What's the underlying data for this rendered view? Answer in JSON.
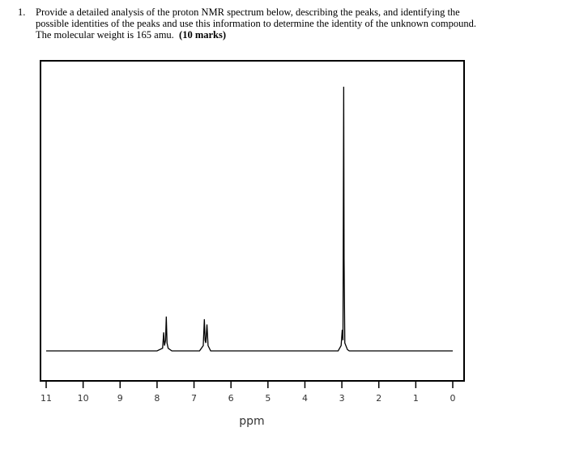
{
  "question": {
    "number": "1.",
    "lines": [
      "Provide a detailed analysis of the proton NMR spectrum below, describing the peaks, and identifying the",
      "possible identities of the peaks and use this information to determine the identity of the unknown compound.",
      "The molecular weight is 165 amu."
    ],
    "marks": "(10 marks)"
  },
  "chart_data": {
    "type": "line",
    "xlabel": "ppm",
    "x": [
      11,
      8.0,
      7.85,
      7.82,
      7.8,
      7.77,
      7.75,
      7.73,
      7.7,
      7.6,
      6.85,
      6.75,
      6.72,
      6.7,
      6.68,
      6.65,
      6.62,
      6.55,
      3.1,
      3.02,
      2.99,
      2.97,
      2.95,
      2.94,
      2.92,
      2.85,
      2.8,
      0
    ],
    "values": [
      0,
      0,
      1,
      7,
      2,
      4,
      13,
      3,
      1,
      0,
      0,
      2,
      12,
      4,
      3,
      10,
      2,
      0,
      0,
      2,
      8,
      4,
      100,
      35,
      3,
      0.5,
      0,
      0
    ],
    "color": "#000000",
    "xlim": [
      11,
      0
    ],
    "xticks": [
      11,
      10,
      9,
      8,
      7,
      6,
      5,
      4,
      3,
      2,
      1,
      0
    ]
  }
}
